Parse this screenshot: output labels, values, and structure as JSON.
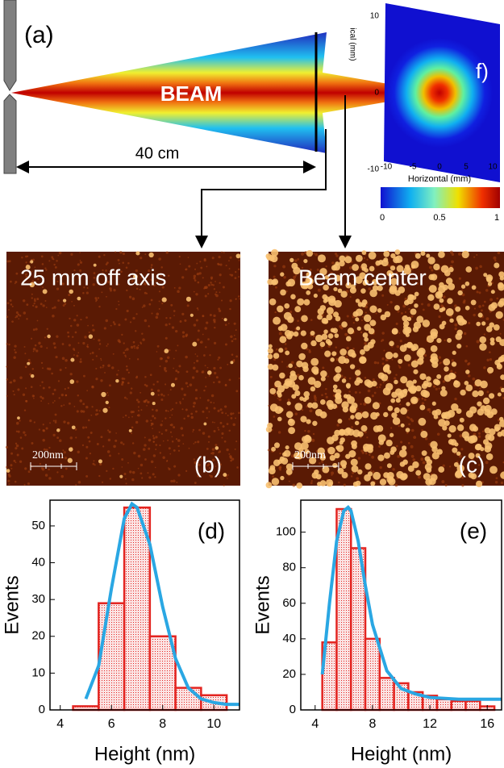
{
  "panel_a": {
    "label": "(a)",
    "beam_label": "BEAM",
    "distance": "40 cm",
    "profile": {
      "label": "f)",
      "y_axis_label": "ical (mm)",
      "x_axis_label": "Horizontal (mm)",
      "yticks": [
        10,
        0,
        -10
      ],
      "xticks": [
        -10,
        -5,
        0,
        5,
        10
      ],
      "colorbar_ticks": [
        0,
        0.5,
        1
      ]
    }
  },
  "panel_b": {
    "text": "25 mm off axis",
    "scale": "200nm",
    "label": "(b)"
  },
  "panel_c": {
    "text": "Beam center",
    "scale": "200nm",
    "label": "(c)"
  },
  "chart_data": [
    {
      "type": "histogram",
      "label": "(d)",
      "x_label": "Height (nm)",
      "y_label": "Events",
      "bins": [
        4.5,
        5.5,
        6.5,
        7.5,
        8.5,
        9.5,
        10.5
      ],
      "counts": [
        1,
        29,
        55,
        20,
        6,
        4
      ],
      "color": "#e32420",
      "xlim": [
        3.6,
        11
      ],
      "ylim": [
        0,
        57
      ],
      "xticks": [
        4,
        6,
        8,
        10
      ],
      "yticks": [
        0,
        10,
        20,
        30,
        40,
        50
      ],
      "fit": {
        "x": [
          5,
          5.5,
          6,
          6.5,
          6.8,
          7,
          7.5,
          8,
          8.5,
          9,
          9.5,
          10,
          10.5,
          11
        ],
        "y": [
          3,
          12,
          33,
          52,
          56,
          55,
          45,
          28,
          14,
          6,
          3,
          2,
          1.5,
          1.5
        ],
        "color": "#2aa7e3"
      }
    },
    {
      "type": "histogram",
      "label": "(e)",
      "x_label": "Height (nm)",
      "y_label": "Events",
      "bins": [
        4.5,
        5.5,
        6.5,
        7.5,
        8.5,
        9.5,
        10.5,
        11.5,
        12.5,
        13.5,
        14.5,
        15.5,
        16.5
      ],
      "counts": [
        38,
        113,
        91,
        40,
        18,
        15,
        10,
        8,
        6,
        5,
        5,
        2
      ],
      "color": "#e32420",
      "xlim": [
        3,
        17
      ],
      "ylim": [
        0,
        118
      ],
      "xticks": [
        4,
        8,
        12,
        16
      ],
      "yticks": [
        0,
        20,
        40,
        60,
        80,
        100
      ],
      "fit": {
        "x": [
          4.5,
          5,
          5.5,
          6,
          6.3,
          6.5,
          7,
          7.5,
          8,
          9,
          10,
          11,
          12,
          14,
          17
        ],
        "y": [
          20,
          60,
          95,
          112,
          114,
          112,
          95,
          70,
          48,
          22,
          12,
          9,
          7,
          6,
          6
        ],
        "color": "#2aa7e3"
      }
    }
  ]
}
